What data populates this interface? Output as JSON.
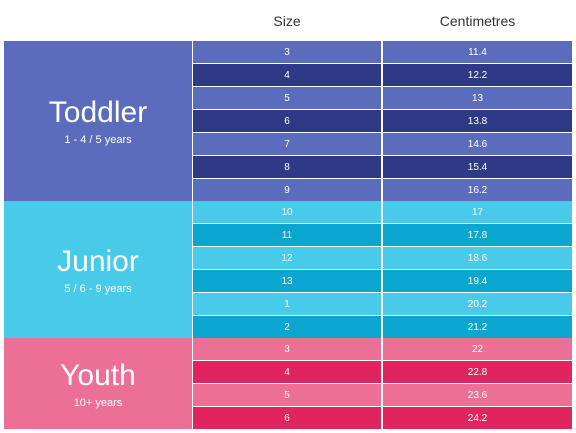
{
  "header": {
    "size_label": "Size",
    "cm_label": "Centimetres"
  },
  "groups": [
    {
      "title": "Toddler",
      "subtitle": "1 - 4 / 5 years",
      "label_color": "#5b6cbd",
      "row_colors": [
        "#5b6cbd",
        "#2e3a85"
      ],
      "rows": [
        {
          "size": "3",
          "cm": "11.4"
        },
        {
          "size": "4",
          "cm": "12.2"
        },
        {
          "size": "5",
          "cm": "13"
        },
        {
          "size": "6",
          "cm": "13.8"
        },
        {
          "size": "7",
          "cm": "14.6"
        },
        {
          "size": "8",
          "cm": "15.4"
        },
        {
          "size": "9",
          "cm": "16.2"
        }
      ]
    },
    {
      "title": "Junior",
      "subtitle": "5 / 6 - 9 years",
      "label_color": "#47cbe9",
      "row_colors": [
        "#47cbe9",
        "#0aa6cf"
      ],
      "rows": [
        {
          "size": "10",
          "cm": "17"
        },
        {
          "size": "11",
          "cm": "17.8"
        },
        {
          "size": "12",
          "cm": "18.6"
        },
        {
          "size": "13",
          "cm": "19.4"
        },
        {
          "size": "1",
          "cm": "20.2"
        },
        {
          "size": "2",
          "cm": "21.2"
        }
      ]
    },
    {
      "title": "Youth",
      "subtitle": "10+ years",
      "label_color": "#ec6f95",
      "row_colors": [
        "#ec6f95",
        "#e0245e"
      ],
      "rows": [
        {
          "size": "3",
          "cm": "22"
        },
        {
          "size": "4",
          "cm": "22.8"
        },
        {
          "size": "5",
          "cm": "23.6"
        },
        {
          "size": "6",
          "cm": "24.2"
        }
      ]
    }
  ]
}
